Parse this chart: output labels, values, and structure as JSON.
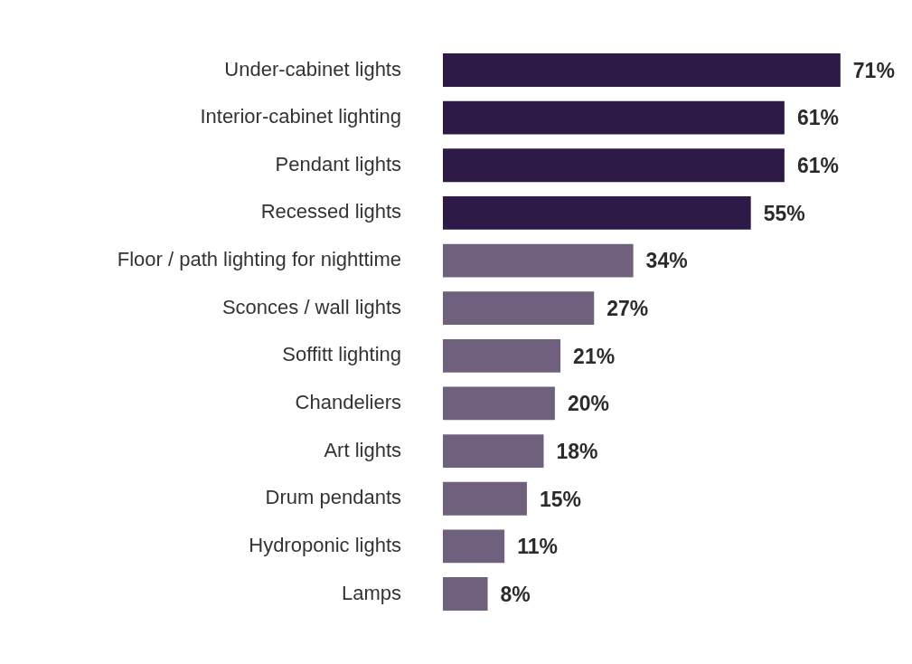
{
  "chart_data": {
    "type": "bar",
    "orientation": "horizontal",
    "categories": [
      "Under-cabinet lights",
      "Interior-cabinet lighting",
      "Pendant lights",
      "Recessed lights",
      "Floor / path lighting for nighttime",
      "Sconces / wall lights",
      "Soffitt lighting",
      "Chandeliers",
      "Art lights",
      "Drum pendants",
      "Hydroponic lights",
      "Lamps"
    ],
    "values": [
      71,
      61,
      61,
      55,
      34,
      27,
      21,
      20,
      18,
      15,
      11,
      8
    ],
    "value_labels": [
      "71%",
      "61%",
      "61%",
      "55%",
      "34%",
      "27%",
      "21%",
      "20%",
      "18%",
      "15%",
      "11%",
      "8%"
    ],
    "colors": [
      "#2e1a47",
      "#2e1a47",
      "#2e1a47",
      "#2e1a47",
      "#6f607d",
      "#6f607d",
      "#6f607d",
      "#6f607d",
      "#6f607d",
      "#6f607d",
      "#6f607d",
      "#6f607d"
    ],
    "legend": false
  }
}
